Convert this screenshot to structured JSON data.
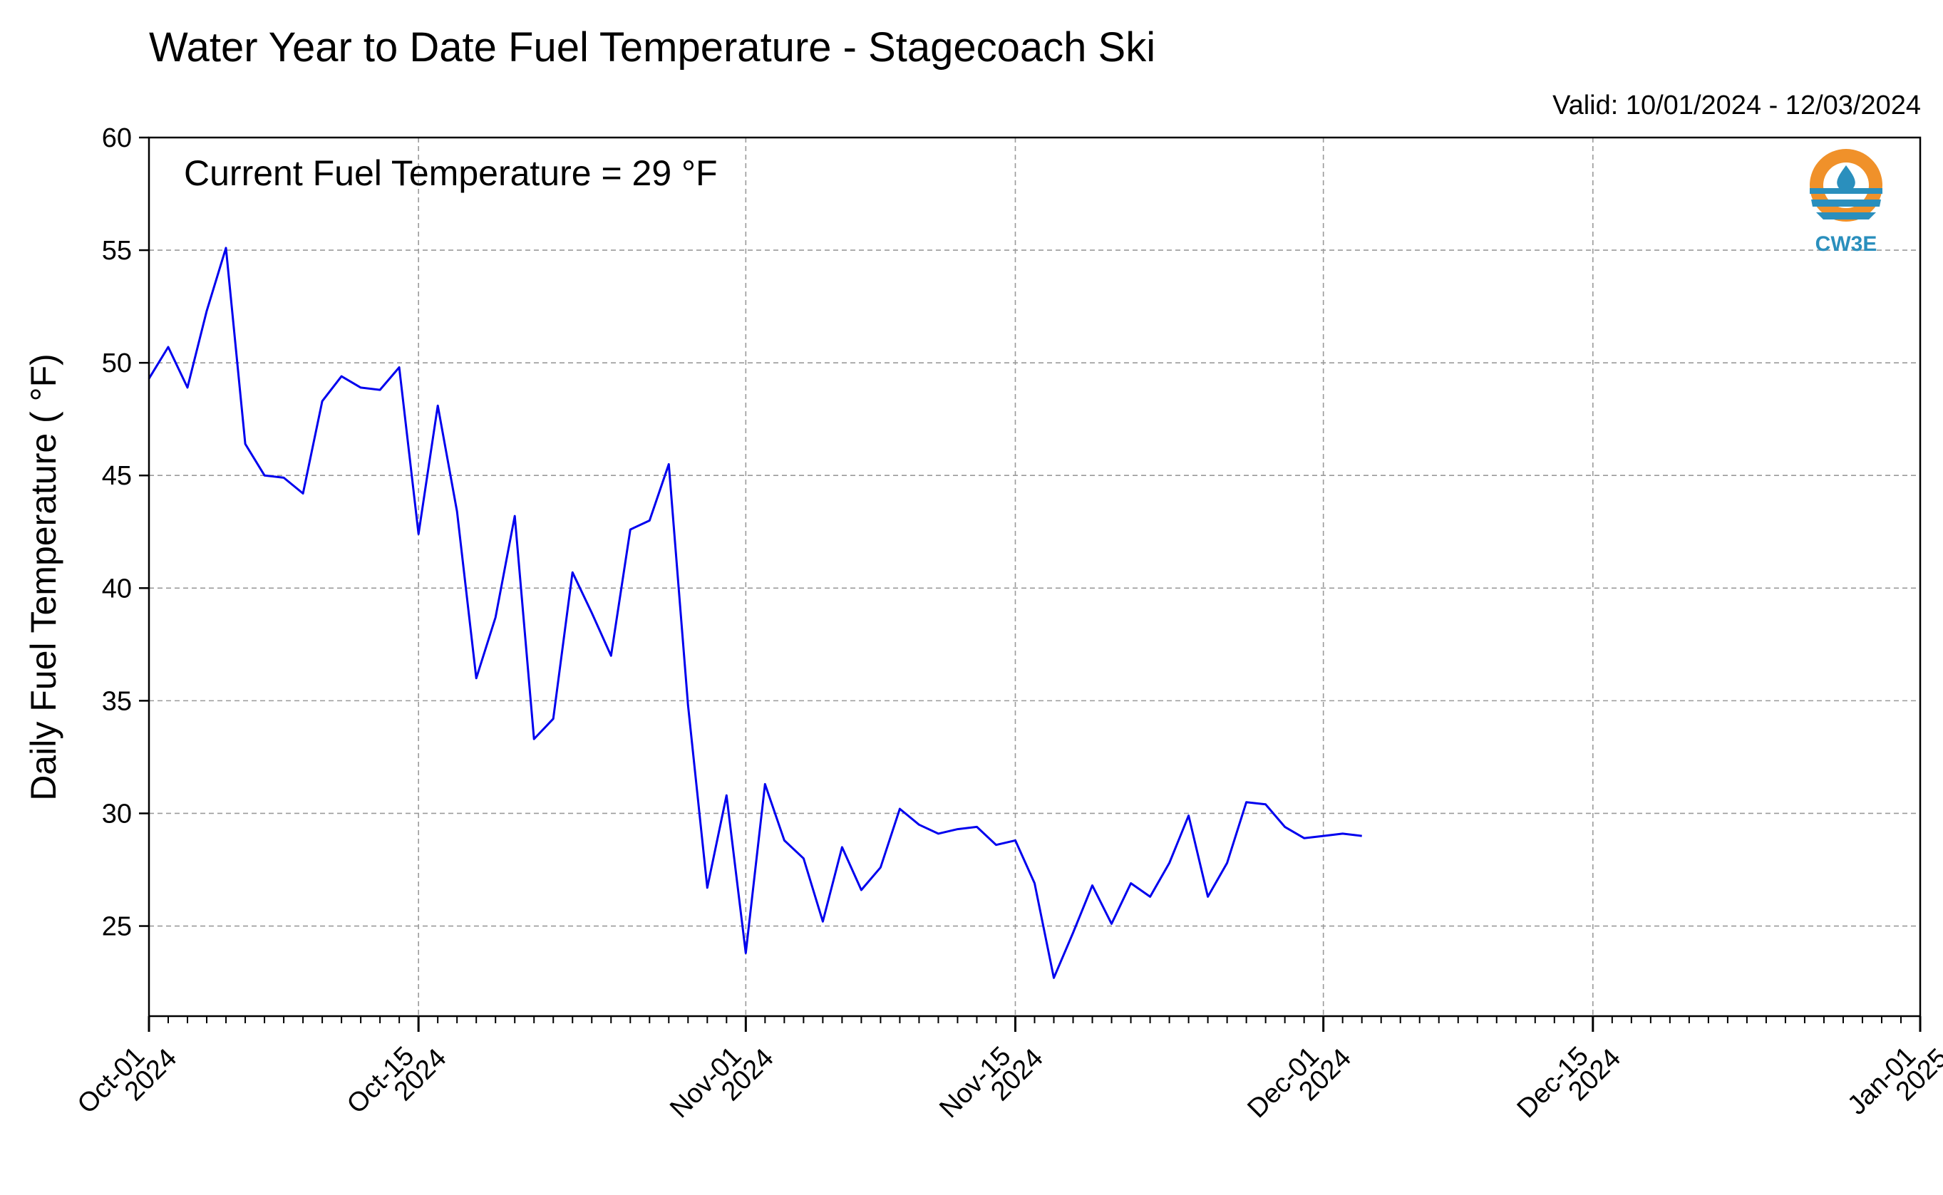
{
  "chart_data": {
    "type": "line",
    "title": "Water Year to Date Fuel Temperature - Stagecoach Ski",
    "subtitle": "Valid: 10/01/2024 - 12/03/2024",
    "annotation": "Current Fuel Temperature = 29  °F",
    "ylabel": "Daily Fuel Temperature ( °F)",
    "xlabel": "",
    "ylim": [
      21,
      60
    ],
    "xlim": [
      "2024-10-01",
      "2025-01-01"
    ],
    "yticks": [
      "25",
      "30",
      "35",
      "40",
      "45",
      "50",
      "55",
      "60"
    ],
    "xticks": [
      {
        "date": "2024-10-01",
        "line1": "Oct-01",
        "line2": "2024"
      },
      {
        "date": "2024-10-15",
        "line1": "Oct-15",
        "line2": "2024"
      },
      {
        "date": "2024-11-01",
        "line1": "Nov-01",
        "line2": "2024"
      },
      {
        "date": "2024-11-15",
        "line1": "Nov-15",
        "line2": "2024"
      },
      {
        "date": "2024-12-01",
        "line1": "Dec-01",
        "line2": "2024"
      },
      {
        "date": "2024-12-15",
        "line1": "Dec-15",
        "line2": "2024"
      },
      {
        "date": "2025-01-01",
        "line1": "Jan-01",
        "line2": "2025"
      }
    ],
    "grid": true,
    "line_color": "#0000ee",
    "series": [
      {
        "x": [
          "2024-10-01",
          "2024-10-02",
          "2024-10-03",
          "2024-10-04",
          "2024-10-05",
          "2024-10-06",
          "2024-10-07",
          "2024-10-08",
          "2024-10-09",
          "2024-10-10",
          "2024-10-11",
          "2024-10-12",
          "2024-10-13",
          "2024-10-14",
          "2024-10-15",
          "2024-10-16",
          "2024-10-17",
          "2024-10-18",
          "2024-10-19",
          "2024-10-20",
          "2024-10-21",
          "2024-10-22",
          "2024-10-23",
          "2024-10-24",
          "2024-10-25",
          "2024-10-26",
          "2024-10-27",
          "2024-10-28",
          "2024-10-29",
          "2024-10-30",
          "2024-10-31",
          "2024-11-01",
          "2024-11-02",
          "2024-11-03",
          "2024-11-04",
          "2024-11-05",
          "2024-11-06",
          "2024-11-07",
          "2024-11-08",
          "2024-11-09",
          "2024-11-10",
          "2024-11-11",
          "2024-11-12",
          "2024-11-13",
          "2024-11-14",
          "2024-11-15",
          "2024-11-16",
          "2024-11-17",
          "2024-11-18",
          "2024-11-19",
          "2024-11-20",
          "2024-11-21",
          "2024-11-22",
          "2024-11-23",
          "2024-11-24",
          "2024-11-25",
          "2024-11-26",
          "2024-11-27",
          "2024-11-28",
          "2024-11-29",
          "2024-11-30",
          "2024-12-01",
          "2024-12-02",
          "2024-12-03"
        ],
        "values": [
          49.3,
          50.7,
          48.9,
          52.3,
          55.1,
          46.4,
          45.0,
          44.9,
          44.2,
          48.3,
          49.4,
          48.9,
          48.8,
          49.8,
          42.4,
          48.1,
          43.4,
          36.0,
          38.7,
          43.2,
          33.3,
          34.2,
          40.7,
          38.9,
          37.0,
          42.6,
          43.0,
          45.5,
          34.8,
          26.7,
          30.8,
          23.8,
          31.3,
          28.8,
          28.0,
          25.2,
          28.5,
          26.6,
          27.6,
          30.2,
          29.5,
          29.1,
          29.3,
          29.4,
          28.6,
          28.8,
          26.9,
          22.7,
          24.7,
          26.8,
          25.1,
          26.9,
          26.3,
          27.8,
          29.9,
          26.3,
          27.8,
          30.5,
          30.4,
          29.4,
          28.9,
          29.0,
          29.1,
          29.0
        ]
      }
    ]
  },
  "logo": {
    "text": "CW3E",
    "colors": {
      "ring": "#f0912a",
      "wave": "#2a8fbd"
    }
  }
}
